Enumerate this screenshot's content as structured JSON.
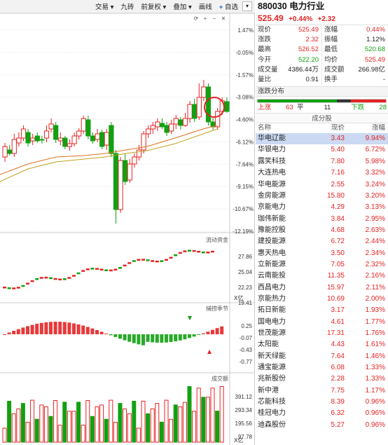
{
  "toolbar": {
    "items": [
      "交易 ▾",
      "九砖",
      "前复权 ▾",
      "叠加 ▾",
      "画线",
      "自选",
      "▾"
    ],
    "add_label": "+"
  },
  "chart_data": [
    {
      "type": "candlestick",
      "title": "",
      "ylabels": [
        "1.47%",
        "-0.05%",
        "-1.57%",
        "-3.08%",
        "-4.60%",
        "-6.12%",
        "-7.64%",
        "-9.15%",
        "-10.67%",
        "-12.19%"
      ],
      "note": "K-line with moving averages; latest candle circled"
    },
    {
      "type": "line",
      "title": "流动资金",
      "ylabels": [
        "27.86",
        "25.04",
        "22.23",
        "19.41"
      ],
      "unit": "X亿"
    },
    {
      "type": "bar",
      "title": "捕捞季节",
      "ylabels": [
        "0.25",
        "-0.07",
        "-0.43",
        "-0.77"
      ]
    },
    {
      "type": "bar",
      "title": "成交额",
      "ylabels": [
        "391.12",
        "293.34",
        "195.56",
        "97.78"
      ],
      "unit": "X亿"
    }
  ],
  "colors": {
    "up": "#e52323",
    "down": "#12a012",
    "accent": "#1a5fd0"
  },
  "quote": {
    "code": "880030",
    "name": "电力行业",
    "price": "525.49",
    "pct": "+0.44%",
    "chg": "+2.32",
    "rows": [
      [
        [
          "现价",
          "525.49",
          "red"
        ],
        [
          "涨幅",
          "0.44%",
          "red"
        ]
      ],
      [
        [
          "涨跌",
          "2.32",
          "red"
        ],
        [
          "振幅",
          "1.12%",
          "blk"
        ]
      ],
      [
        [
          "最高",
          "526.52",
          "red"
        ],
        [
          "最低",
          "520.68",
          "grn"
        ]
      ],
      [
        [
          "今开",
          "522.20",
          "grn"
        ],
        [
          "均价",
          "525.49",
          "red"
        ]
      ],
      [
        [
          "成交量",
          "4386.44万",
          "blk"
        ],
        [
          "成交额",
          "266.98亿",
          "blk"
        ]
      ],
      [
        [
          "量比",
          "0.91",
          "blk"
        ],
        [
          "换手",
          "-",
          "blk"
        ]
      ]
    ]
  },
  "distribution": {
    "title": "涨跌分布",
    "up_label": "上涨",
    "up": 63,
    "flat_label": "平",
    "flat": 11,
    "down_label": "下跌",
    "down": 28
  },
  "components": {
    "title": "成分股",
    "headers": [
      "名称",
      "现价",
      "涨幅"
    ],
    "rows": [
      [
        "华电辽能",
        "3.43",
        "9.94%"
      ],
      [
        "华银电力",
        "5.40",
        "6.72%"
      ],
      [
        "露笑科技",
        "7.80",
        "5.98%"
      ],
      [
        "大连热电",
        "7.16",
        "3.32%"
      ],
      [
        "华电能源",
        "2.55",
        "3.24%"
      ],
      [
        "金房能源",
        "15.80",
        "3.20%"
      ],
      [
        "京能电力",
        "4.29",
        "3.13%"
      ],
      [
        "珈伟新能",
        "3.84",
        "2.95%"
      ],
      [
        "豫能控股",
        "4.68",
        "2.63%"
      ],
      [
        "建投能源",
        "6.72",
        "2.44%"
      ],
      [
        "惠天热电",
        "3.50",
        "2.34%"
      ],
      [
        "立新能源",
        "7.05",
        "2.32%"
      ],
      [
        "云南能投",
        "11.35",
        "2.16%"
      ],
      [
        "西昌电力",
        "15.97",
        "2.11%"
      ],
      [
        "京能热力",
        "10.69",
        "2.00%"
      ],
      [
        "拓日新能",
        "3.17",
        "1.93%"
      ],
      [
        "国电电力",
        "4.61",
        "1.77%"
      ],
      [
        "世茂能源",
        "17.31",
        "1.76%"
      ],
      [
        "太阳能",
        "4.43",
        "1.61%"
      ],
      [
        "新天绿能",
        "7.64",
        "1.46%"
      ],
      [
        "通宝能源",
        "6.08",
        "1.33%"
      ],
      [
        "兆新股份",
        "2.28",
        "1.33%"
      ],
      [
        "新中港",
        "7.75",
        "1.17%"
      ],
      [
        "芯能科技",
        "8.39",
        "0.96%"
      ],
      [
        "桂冠电力",
        "6.32",
        "0.96%"
      ],
      [
        "迪森股份",
        "5.27",
        "0.96%"
      ]
    ]
  }
}
